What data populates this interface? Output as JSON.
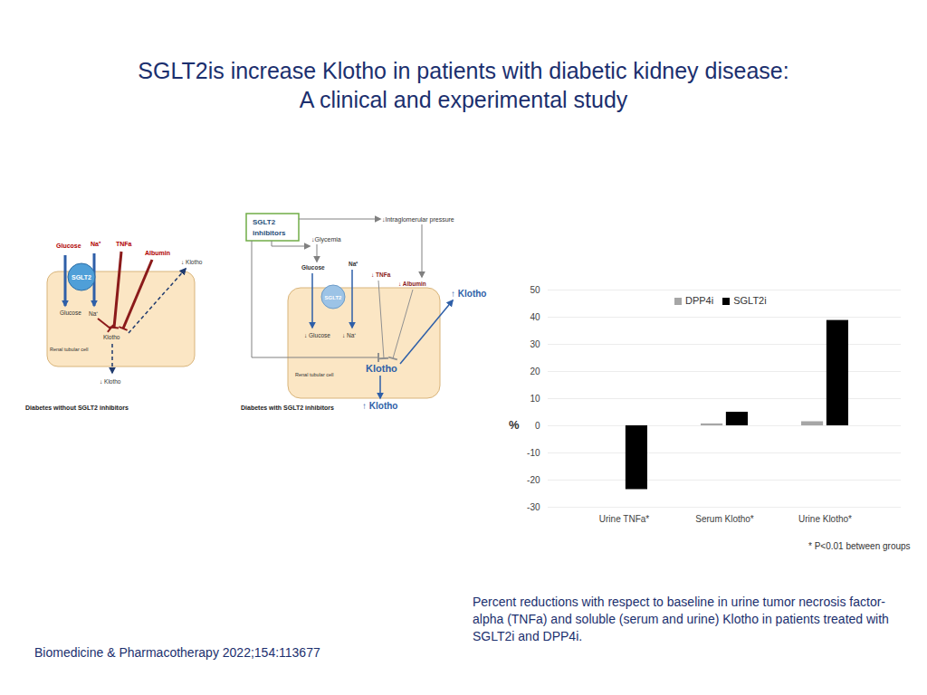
{
  "slide": {
    "title": [
      "SGLT2is increase Klotho in patients with diabetic kidney disease:",
      "A clinical and experimental study"
    ],
    "caption": "Percent reductions with respect to baseline in urine tumor necrosis factor-alpha (TNFa) and soluble (serum and urine) Klotho in patients treated with SGLT2i and DPP4i.",
    "citation": "Biomedicine & Pharmacotherapy 2022;154:113677"
  },
  "diagrams": [
    {
      "caption": "Diabetes without SGLT2 inhibitors",
      "labels": {
        "glucose_in": "Glucose",
        "sodium_in": "Na⁺",
        "tnfa": "TNFa",
        "albumin": "Albumin",
        "klotho_out": "↓ Klotho",
        "transporter": "SGLT2",
        "glucose_cell": "Glucose",
        "sodium_cell": "Na⁺",
        "klotho_cell": "Klotho",
        "cell": "Renal tubular cell",
        "klotho_urine": "↓ Klotho"
      }
    },
    {
      "caption": "Diabetes with SGLT2 inhibitors",
      "labels": {
        "drug": [
          "SGLT2",
          "inhibitors"
        ],
        "pressure": "↓Intraglomerular pressure",
        "glycemia": "↓Glycemia",
        "glucose_in": "Glucose",
        "sodium_in": "Na⁺",
        "tnfa": "↓ TNFa",
        "albumin": "↓ Albumin",
        "klotho_out": "↑ Klotho",
        "transporter": "SGLT2",
        "glucose_cell": "↓ Glucose",
        "sodium_cell": "↓ Na⁺",
        "klotho_cell": "Klotho",
        "cell": "Renal tubular cell",
        "klotho_urine": "↑ Klotho"
      }
    }
  ],
  "chart_data": {
    "type": "bar",
    "categories": [
      "Urine TNFa*",
      "Serum Klotho*",
      "Urine Klotho*"
    ],
    "series": [
      {
        "name": "DPP4i",
        "color": "#a6a6a6",
        "values": [
          0,
          0.7,
          1.5
        ]
      },
      {
        "name": "SGLT2i",
        "color": "#000000",
        "values": [
          -23.5,
          5,
          38.8
        ]
      }
    ],
    "ylabel": "%",
    "ylim": [
      -30,
      50
    ],
    "yticks": [
      -30,
      -20,
      -10,
      0,
      10,
      20,
      30,
      40,
      50
    ],
    "grid": true,
    "legend": "top",
    "annotation": "* P<0.01 between groups"
  }
}
